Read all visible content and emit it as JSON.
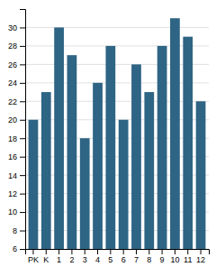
{
  "chart_data": {
    "type": "bar",
    "categories": [
      "PK",
      "K",
      "1",
      "2",
      "3",
      "4",
      "5",
      "6",
      "7",
      "8",
      "9",
      "10",
      "11",
      "12"
    ],
    "values": [
      20,
      23,
      30,
      27,
      18,
      24,
      28,
      20,
      26,
      23,
      28,
      31,
      29,
      22
    ],
    "color": "#2e6484",
    "ylim": [
      6,
      32
    ],
    "yticks": [
      6,
      8,
      10,
      12,
      14,
      16,
      18,
      20,
      22,
      24,
      26,
      28,
      30
    ],
    "grid": true
  }
}
